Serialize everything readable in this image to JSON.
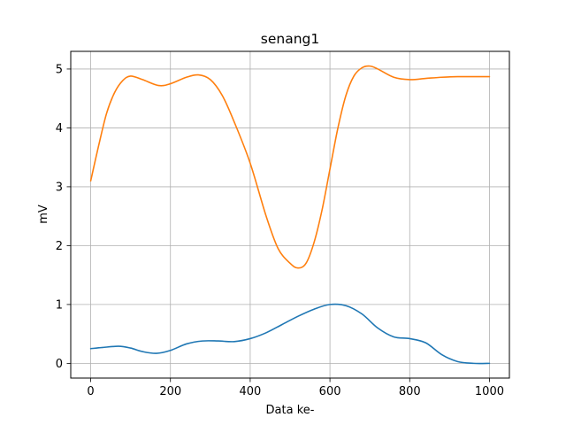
{
  "chart_data": {
    "type": "line",
    "title": "senang1",
    "xlabel": "Data ke-",
    "ylabel": "mV",
    "xlim": [
      -50,
      1050
    ],
    "ylim": [
      -0.25,
      5.3
    ],
    "xticks": [
      0,
      200,
      400,
      600,
      800,
      1000
    ],
    "yticks": [
      0,
      1,
      2,
      3,
      4,
      5
    ],
    "grid": true,
    "series": [
      {
        "color": "#1f77b4",
        "x": [
          0,
          30,
          70,
          100,
          130,
          165,
          200,
          240,
          280,
          320,
          360,
          400,
          440,
          480,
          520,
          560,
          600,
          640,
          680,
          720,
          760,
          800,
          840,
          880,
          920,
          960,
          1000
        ],
        "y": [
          0.25,
          0.27,
          0.29,
          0.26,
          0.2,
          0.17,
          0.22,
          0.33,
          0.38,
          0.38,
          0.37,
          0.42,
          0.52,
          0.66,
          0.8,
          0.92,
          1.0,
          0.98,
          0.84,
          0.6,
          0.45,
          0.42,
          0.35,
          0.15,
          0.03,
          0.0,
          0.0
        ]
      },
      {
        "color": "#ff7f0e",
        "x": [
          0,
          20,
          40,
          60,
          80,
          100,
          130,
          170,
          200,
          240,
          270,
          300,
          330,
          360,
          400,
          440,
          470,
          500,
          520,
          540,
          560,
          580,
          600,
          620,
          640,
          660,
          680,
          700,
          720,
          760,
          800,
          840,
          880,
          920,
          960,
          1000
        ],
        "y": [
          3.1,
          3.7,
          4.25,
          4.6,
          4.8,
          4.88,
          4.82,
          4.72,
          4.75,
          4.86,
          4.9,
          4.82,
          4.55,
          4.1,
          3.4,
          2.5,
          1.95,
          1.7,
          1.62,
          1.7,
          2.05,
          2.6,
          3.3,
          4.0,
          4.55,
          4.88,
          5.02,
          5.05,
          5.0,
          4.86,
          4.82,
          4.84,
          4.86,
          4.87,
          4.87,
          4.87
        ]
      }
    ]
  }
}
